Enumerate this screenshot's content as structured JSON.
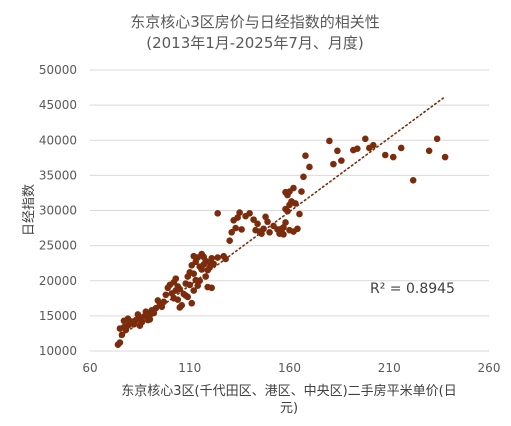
{
  "chart_data": {
    "type": "scatter",
    "title": "东京核心3区房价与日经指数的相关性",
    "subtitle": "(2013年1月-2025年7月、月度)",
    "xlabel_line1": "东京核心3区(千代田区、港区、中央区)二手房平米单价(日",
    "xlabel_line2": "元)",
    "ylabel": "日经指数",
    "xlim": [
      60,
      260
    ],
    "ylim": [
      10000,
      50000
    ],
    "x_ticks": [
      "60",
      "110",
      "160",
      "210",
      "260"
    ],
    "y_ticks": [
      "10000",
      "15000",
      "20000",
      "25000",
      "30000",
      "35000",
      "40000",
      "45000",
      "50000"
    ],
    "grid": "horizontal",
    "trendline": {
      "type": "linear",
      "x_start": 75,
      "y_start": 12000,
      "x_end": 238,
      "y_end": 46200,
      "style": "dotted"
    },
    "r_squared_label": "R² = 0.8945",
    "marker_color": "#7b2c0c",
    "points": [
      [
        74,
        10900
      ],
      [
        75,
        11200
      ],
      [
        76,
        12300
      ],
      [
        75,
        13200
      ],
      [
        77,
        13400
      ],
      [
        78,
        13000
      ],
      [
        79,
        13600
      ],
      [
        80,
        13900
      ],
      [
        77,
        14300
      ],
      [
        79,
        14600
      ],
      [
        81,
        14200
      ],
      [
        82,
        13800
      ],
      [
        83,
        14400
      ],
      [
        84,
        15200
      ],
      [
        85,
        14700
      ],
      [
        86,
        14100
      ],
      [
        85,
        13600
      ],
      [
        87,
        14900
      ],
      [
        88,
        15600
      ],
      [
        89,
        14400
      ],
      [
        90,
        15100
      ],
      [
        91,
        15800
      ],
      [
        92,
        15400
      ],
      [
        90,
        14500
      ],
      [
        93,
        16100
      ],
      [
        94,
        17200
      ],
      [
        95,
        16700
      ],
      [
        96,
        16300
      ],
      [
        97,
        17000
      ],
      [
        98,
        18000
      ],
      [
        99,
        19000
      ],
      [
        100,
        19400
      ],
      [
        101,
        18200
      ],
      [
        102,
        17500
      ],
      [
        103,
        18600
      ],
      [
        102,
        19800
      ],
      [
        103,
        20300
      ],
      [
        104,
        19200
      ],
      [
        105,
        18800
      ],
      [
        104,
        17300
      ],
      [
        106,
        16500
      ],
      [
        105,
        16200
      ],
      [
        107,
        18100
      ],
      [
        108,
        19600
      ],
      [
        109,
        20600
      ],
      [
        110,
        21200
      ],
      [
        111,
        22200
      ],
      [
        112,
        21000
      ],
      [
        113,
        20100
      ],
      [
        110,
        19400
      ],
      [
        112,
        18600
      ],
      [
        109,
        17700
      ],
      [
        108,
        17900
      ],
      [
        111,
        16800
      ],
      [
        114,
        19300
      ],
      [
        115,
        20000
      ],
      [
        116,
        21600
      ],
      [
        117,
        22300
      ],
      [
        118,
        22800
      ],
      [
        119,
        21500
      ],
      [
        120,
        21900
      ],
      [
        118,
        20600
      ],
      [
        117,
        23400
      ],
      [
        116,
        23800
      ],
      [
        114,
        23300
      ],
      [
        113,
        22700
      ],
      [
        115,
        22000
      ],
      [
        112,
        23500
      ],
      [
        120,
        22600
      ],
      [
        121,
        23200
      ],
      [
        122,
        22400
      ],
      [
        119,
        19100
      ],
      [
        121,
        19000
      ],
      [
        124,
        23300
      ],
      [
        127,
        23500
      ],
      [
        128,
        23100
      ],
      [
        130,
        25700
      ],
      [
        131,
        26900
      ],
      [
        132,
        28600
      ],
      [
        134,
        29000
      ],
      [
        135,
        29700
      ],
      [
        133,
        27500
      ],
      [
        136,
        27300
      ],
      [
        138,
        29200
      ],
      [
        140,
        29600
      ],
      [
        142,
        28700
      ],
      [
        144,
        28100
      ],
      [
        143,
        27200
      ],
      [
        145,
        27000
      ],
      [
        146,
        26700
      ],
      [
        147,
        27400
      ],
      [
        148,
        29100
      ],
      [
        149,
        28400
      ],
      [
        150,
        26900
      ],
      [
        152,
        27800
      ],
      [
        154,
        27300
      ],
      [
        155,
        26700
      ],
      [
        156,
        27000
      ],
      [
        157,
        27600
      ],
      [
        158,
        28300
      ],
      [
        159,
        29900
      ],
      [
        160,
        30800
      ],
      [
        158,
        30200
      ],
      [
        159,
        32200
      ],
      [
        161,
        31300
      ],
      [
        162,
        33200
      ],
      [
        160,
        32700
      ],
      [
        158,
        32600
      ],
      [
        163,
        31000
      ],
      [
        165,
        29500
      ],
      [
        166,
        32700
      ],
      [
        167,
        34800
      ],
      [
        168,
        37800
      ],
      [
        170,
        36200
      ],
      [
        180,
        39900
      ],
      [
        182,
        36600
      ],
      [
        184,
        38500
      ],
      [
        186,
        37100
      ],
      [
        192,
        38600
      ],
      [
        194,
        38800
      ],
      [
        198,
        40200
      ],
      [
        200,
        38900
      ],
      [
        202,
        39300
      ],
      [
        208,
        37900
      ],
      [
        212,
        37600
      ],
      [
        216,
        38900
      ],
      [
        222,
        34300
      ],
      [
        230,
        38500
      ],
      [
        234,
        40200
      ],
      [
        238,
        37600
      ],
      [
        124,
        29600
      ],
      [
        157,
        26600
      ],
      [
        156,
        27400
      ],
      [
        160,
        27200
      ],
      [
        162,
        27000
      ],
      [
        164,
        27400
      ]
    ]
  }
}
